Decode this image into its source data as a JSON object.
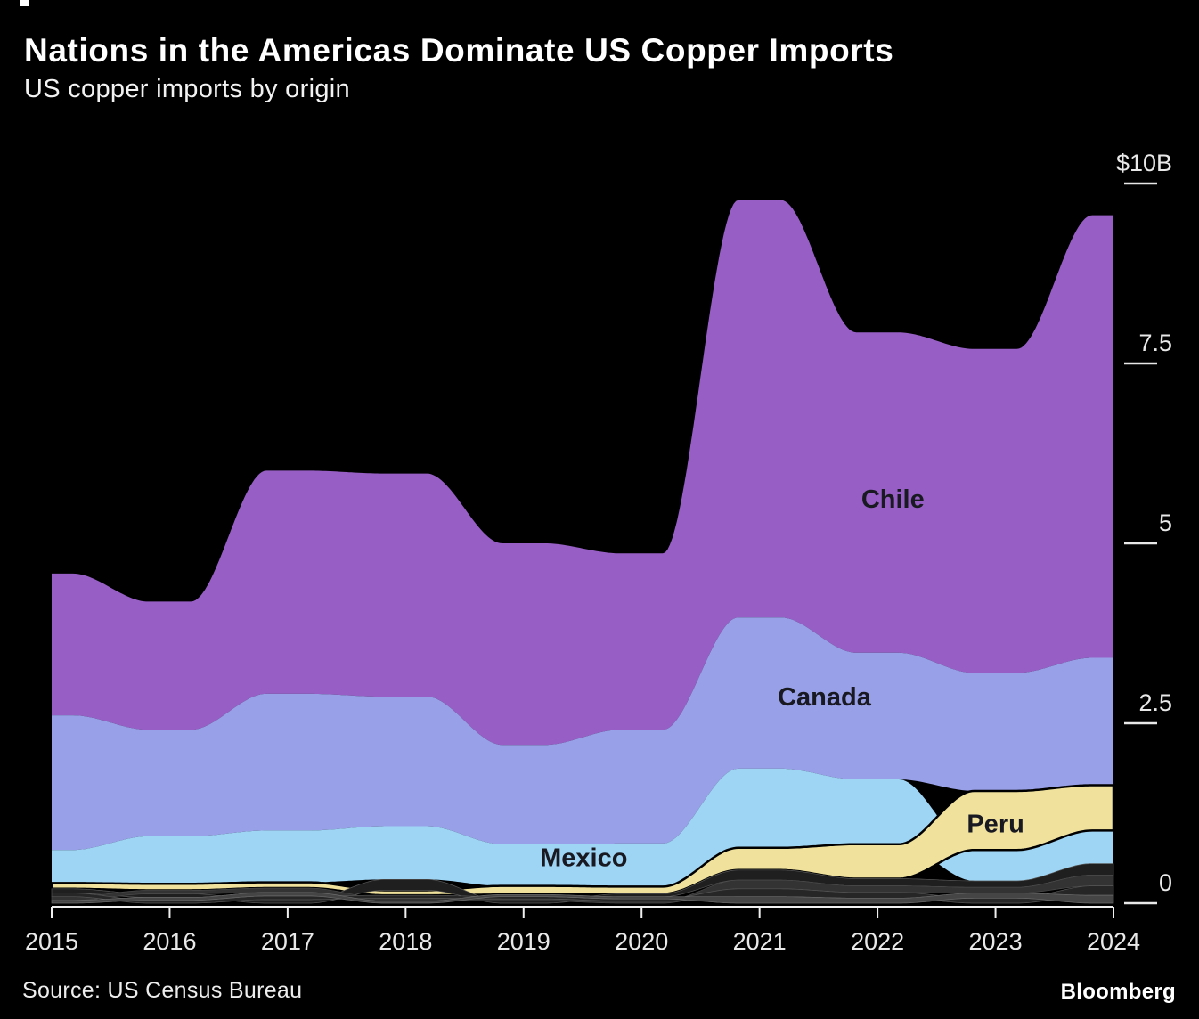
{
  "header": {
    "title": "Nations in the Americas Dominate US Copper Imports",
    "subtitle": "US copper imports by origin"
  },
  "footer": {
    "source": "Source: US Census Bureau",
    "brand": "Bloomberg"
  },
  "colors": {
    "background": "#000000",
    "axis_text": "#e8e8e8",
    "axis_line": "#f0f0f0",
    "area_label_text": "#191922"
  },
  "chart_data": {
    "type": "area",
    "variant": "stacked-stream, ranked ascending (smallest layer at bottom), smooth step transitions between annual values",
    "unit": "billion USD",
    "title": "US copper imports by origin",
    "xlabel": "",
    "ylabel": "$B",
    "ylim": [
      0,
      10
    ],
    "grid": false,
    "legend_position": "labels drawn inside areas",
    "x": [
      2015,
      2016,
      2017,
      2018,
      2019,
      2020,
      2021,
      2022,
      2023,
      2024
    ],
    "series": [
      {
        "id": "chile",
        "name": "Chile",
        "color": "#975fc6",
        "values": [
          1.97,
          1.78,
          3.1,
          3.1,
          2.8,
          2.45,
          5.8,
          4.45,
          4.5,
          6.15
        ]
      },
      {
        "id": "canada",
        "name": "Canada",
        "color": "#98a0e8",
        "values": [
          1.87,
          1.48,
          1.9,
          1.8,
          1.38,
          1.58,
          2.1,
          1.76,
          1.64,
          1.77
        ]
      },
      {
        "id": "mexico",
        "name": "Mexico",
        "color": "#9ed5f4",
        "values": [
          0.46,
          0.66,
          0.72,
          0.74,
          0.58,
          0.6,
          1.1,
          0.9,
          0.43,
          0.46
        ]
      },
      {
        "id": "peru",
        "name": "Peru",
        "color": "#f0e29d",
        "stroke": "#000000",
        "strokeWidth": 2.5,
        "values": [
          0.08,
          0.09,
          0.08,
          0.07,
          0.12,
          0.1,
          0.31,
          0.48,
          0.82,
          0.63
        ]
      },
      {
        "id": "other-a",
        "name": "Other (unlabeled)",
        "color": "#1f1f1f",
        "stroke": "#565656",
        "strokeWidth": 0.7,
        "values": [
          0.06,
          0.05,
          0.05,
          0.15,
          0.03,
          0.04,
          0.14,
          0.1,
          0.09,
          0.16
        ]
      },
      {
        "id": "other-b",
        "name": "Other (unlabeled)",
        "color": "#333333",
        "stroke": "#4a4a4a",
        "strokeWidth": 0.7,
        "values": [
          0.05,
          0.05,
          0.06,
          0.04,
          0.03,
          0.03,
          0.12,
          0.09,
          0.08,
          0.15
        ]
      },
      {
        "id": "other-c",
        "name": "Other (unlabeled)",
        "color": "#262626",
        "stroke": "#555555",
        "strokeWidth": 0.7,
        "values": [
          0.05,
          0.04,
          0.05,
          0.04,
          0.03,
          0.03,
          0.11,
          0.08,
          0.07,
          0.13
        ]
      },
      {
        "id": "other-d",
        "name": "Other (unlabeled)",
        "color": "#454545",
        "stroke": "#6a6a6a",
        "strokeWidth": 0.7,
        "values": [
          0.04,
          0.04,
          0.05,
          0.03,
          0.03,
          0.03,
          0.09,
          0.07,
          0.07,
          0.11
        ]
      }
    ],
    "area_labels": [
      {
        "id": "chile",
        "text": "Chile",
        "year": 2022.13,
        "value": 5.62
      },
      {
        "id": "canada",
        "text": "Canada",
        "year": 2021.55,
        "value": 2.87
      },
      {
        "id": "mexico",
        "text": "Mexico",
        "year": 2019.51,
        "value": 0.64
      },
      {
        "id": "peru",
        "text": "Peru",
        "year": 2023.0,
        "value": 1.11
      }
    ],
    "yticks": [
      {
        "label": "$10B",
        "value": 10
      },
      {
        "label": "7.5",
        "value": 7.5
      },
      {
        "label": "5",
        "value": 5
      },
      {
        "label": "2.5",
        "value": 2.5
      },
      {
        "label": "0",
        "value": 0
      }
    ],
    "xtick_labels": [
      "2015",
      "2016",
      "2017",
      "2018",
      "2019",
      "2020",
      "2021",
      "2022",
      "2023",
      "2024"
    ]
  }
}
